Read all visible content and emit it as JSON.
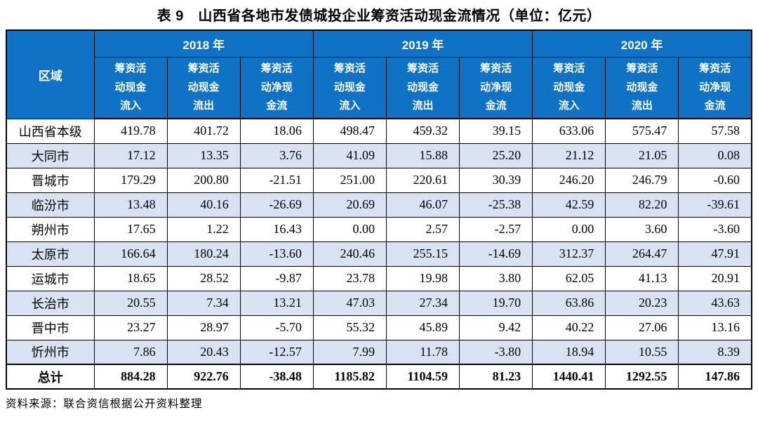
{
  "title": "表 9　山西省各地市发债城投企业筹资活动现金流情况（单位：亿元）",
  "source_note": "资料来源：联合资信根据公开资料整理",
  "colors": {
    "header_bg": "#0F72C4",
    "header_text": "#FFFFFF",
    "alt_row_bg": "#D9E2F3",
    "border": "#000000",
    "body_text": "#000000"
  },
  "table": {
    "region_header": "区域",
    "year_groups": [
      "2018 年",
      "2019 年",
      "2020 年"
    ],
    "sub_headers": [
      "筹资活\n动现金\n流入",
      "筹资活\n动现金\n流出",
      "筹资活\n动净现\n金流",
      "筹资活\n动现金\n流入",
      "筹资活\n动现金\n流出",
      "筹资活\n动净现\n金流",
      "筹资活\n动现金\n流入",
      "筹资活\n动现金\n流出",
      "筹资活\n动净现\n金流"
    ],
    "rows": [
      {
        "region": "山西省本级",
        "values": [
          "419.78",
          "401.72",
          "18.06",
          "498.47",
          "459.32",
          "39.15",
          "633.06",
          "575.47",
          "57.58"
        ]
      },
      {
        "region": "大同市",
        "values": [
          "17.12",
          "13.35",
          "3.76",
          "41.09",
          "15.88",
          "25.20",
          "21.12",
          "21.05",
          "0.08"
        ]
      },
      {
        "region": "晋城市",
        "values": [
          "179.29",
          "200.80",
          "-21.51",
          "251.00",
          "220.61",
          "30.39",
          "246.20",
          "246.79",
          "-0.60"
        ]
      },
      {
        "region": "临汾市",
        "values": [
          "13.48",
          "40.16",
          "-26.69",
          "20.69",
          "46.07",
          "-25.38",
          "42.59",
          "82.20",
          "-39.61"
        ]
      },
      {
        "region": "朔州市",
        "values": [
          "17.65",
          "1.22",
          "16.43",
          "0.00",
          "2.57",
          "-2.57",
          "0.00",
          "3.60",
          "-3.60"
        ]
      },
      {
        "region": "太原市",
        "values": [
          "166.64",
          "180.24",
          "-13.60",
          "240.46",
          "255.15",
          "-14.69",
          "312.37",
          "264.47",
          "47.91"
        ]
      },
      {
        "region": "运城市",
        "values": [
          "18.65",
          "28.52",
          "-9.87",
          "23.78",
          "19.98",
          "3.80",
          "62.05",
          "41.13",
          "20.91"
        ]
      },
      {
        "region": "长治市",
        "values": [
          "20.55",
          "7.34",
          "13.21",
          "47.03",
          "27.34",
          "19.70",
          "63.86",
          "20.23",
          "43.63"
        ]
      },
      {
        "region": "晋中市",
        "values": [
          "23.27",
          "28.97",
          "-5.70",
          "55.32",
          "45.89",
          "9.42",
          "40.22",
          "27.06",
          "13.16"
        ]
      },
      {
        "region": "忻州市",
        "values": [
          "7.86",
          "20.43",
          "-12.57",
          "7.99",
          "11.78",
          "-3.80",
          "18.94",
          "10.55",
          "8.39"
        ]
      }
    ],
    "total_row": {
      "region": "总计",
      "values": [
        "884.28",
        "922.76",
        "-38.48",
        "1185.82",
        "1104.59",
        "81.23",
        "1440.41",
        "1292.55",
        "147.86"
      ]
    }
  }
}
